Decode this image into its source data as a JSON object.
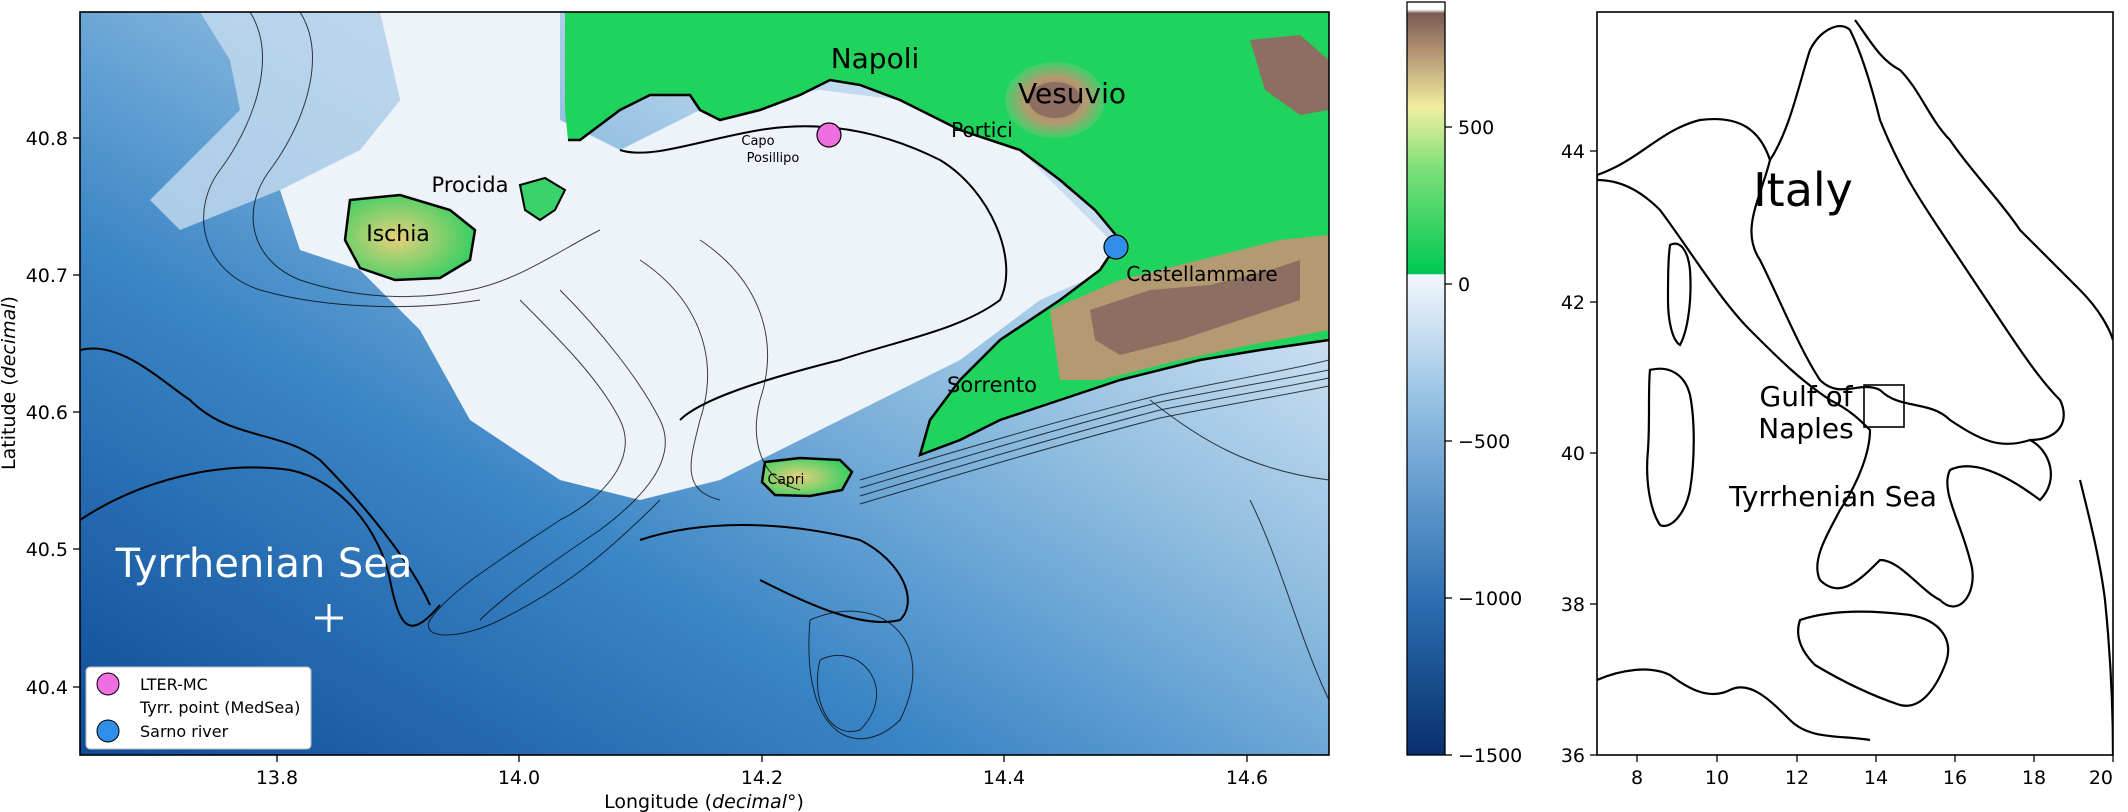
{
  "main_map": {
    "x_axis": {
      "label": "Longitude (",
      "label_italic": "decimal",
      "label_suffix": "°)",
      "ticks": [
        "13.8",
        "14.0",
        "14.2",
        "14.4",
        "14.6"
      ],
      "range": [
        13.64,
        14.65
      ]
    },
    "y_axis": {
      "label": "Latitude (",
      "label_italic": "decimal",
      "label_suffix": ")",
      "ticks": [
        "40.8",
        "40.7",
        "40.6",
        "40.5",
        "40.4"
      ],
      "range": [
        40.35,
        40.89
      ]
    },
    "place_labels": {
      "napoli": "Napoli",
      "vesuvio": "Vesuvio",
      "portici": "Portici",
      "capo": "Capo",
      "posillipo": "Posillipo",
      "procida": "Procida",
      "ischia": "Ischia",
      "castellammare": "Castellammare",
      "sorrento": "Sorrento",
      "capri": "Capri",
      "tyrrhenian": "Tyrrhenian Sea"
    },
    "markers": [
      {
        "name": "LTER-MC",
        "lon": 14.25,
        "lat": 40.81,
        "color": "#ef6fe0"
      },
      {
        "name": "Sarno river",
        "lon": 14.48,
        "lat": 40.72,
        "color": "#2f8fe8"
      },
      {
        "name": "Tyrr. point (MedSea)",
        "lon": 13.85,
        "lat": 40.45,
        "symbol": "+"
      }
    ],
    "legend": {
      "lter": "LTER-MC",
      "tyrr": "Tyrr. point (MedSea)",
      "sarno": "Sarno river",
      "placement": "lower-left"
    }
  },
  "colorbar": {
    "ticks": [
      "500",
      "0",
      "−500",
      "−1000",
      "−1500"
    ],
    "range": [
      -1500,
      850
    ],
    "colors": {
      "deep": "#0a3f86",
      "mid": "#5a9fd0",
      "shallow": "#eef3fa",
      "land_low": "#00c853",
      "land_mid": "#f2ef9a",
      "land_high": "#8c6a60",
      "peak": "#ffffff"
    }
  },
  "overview_map": {
    "x_ticks": [
      "8",
      "10",
      "12",
      "14",
      "16",
      "18",
      "20"
    ],
    "y_ticks": [
      "44",
      "42",
      "40",
      "38",
      "36"
    ],
    "labels": {
      "italy": "Italy",
      "gulf_line1": "Gulf of",
      "gulf_line2": "Naples",
      "sea": "Tyrrhenian Sea"
    }
  }
}
